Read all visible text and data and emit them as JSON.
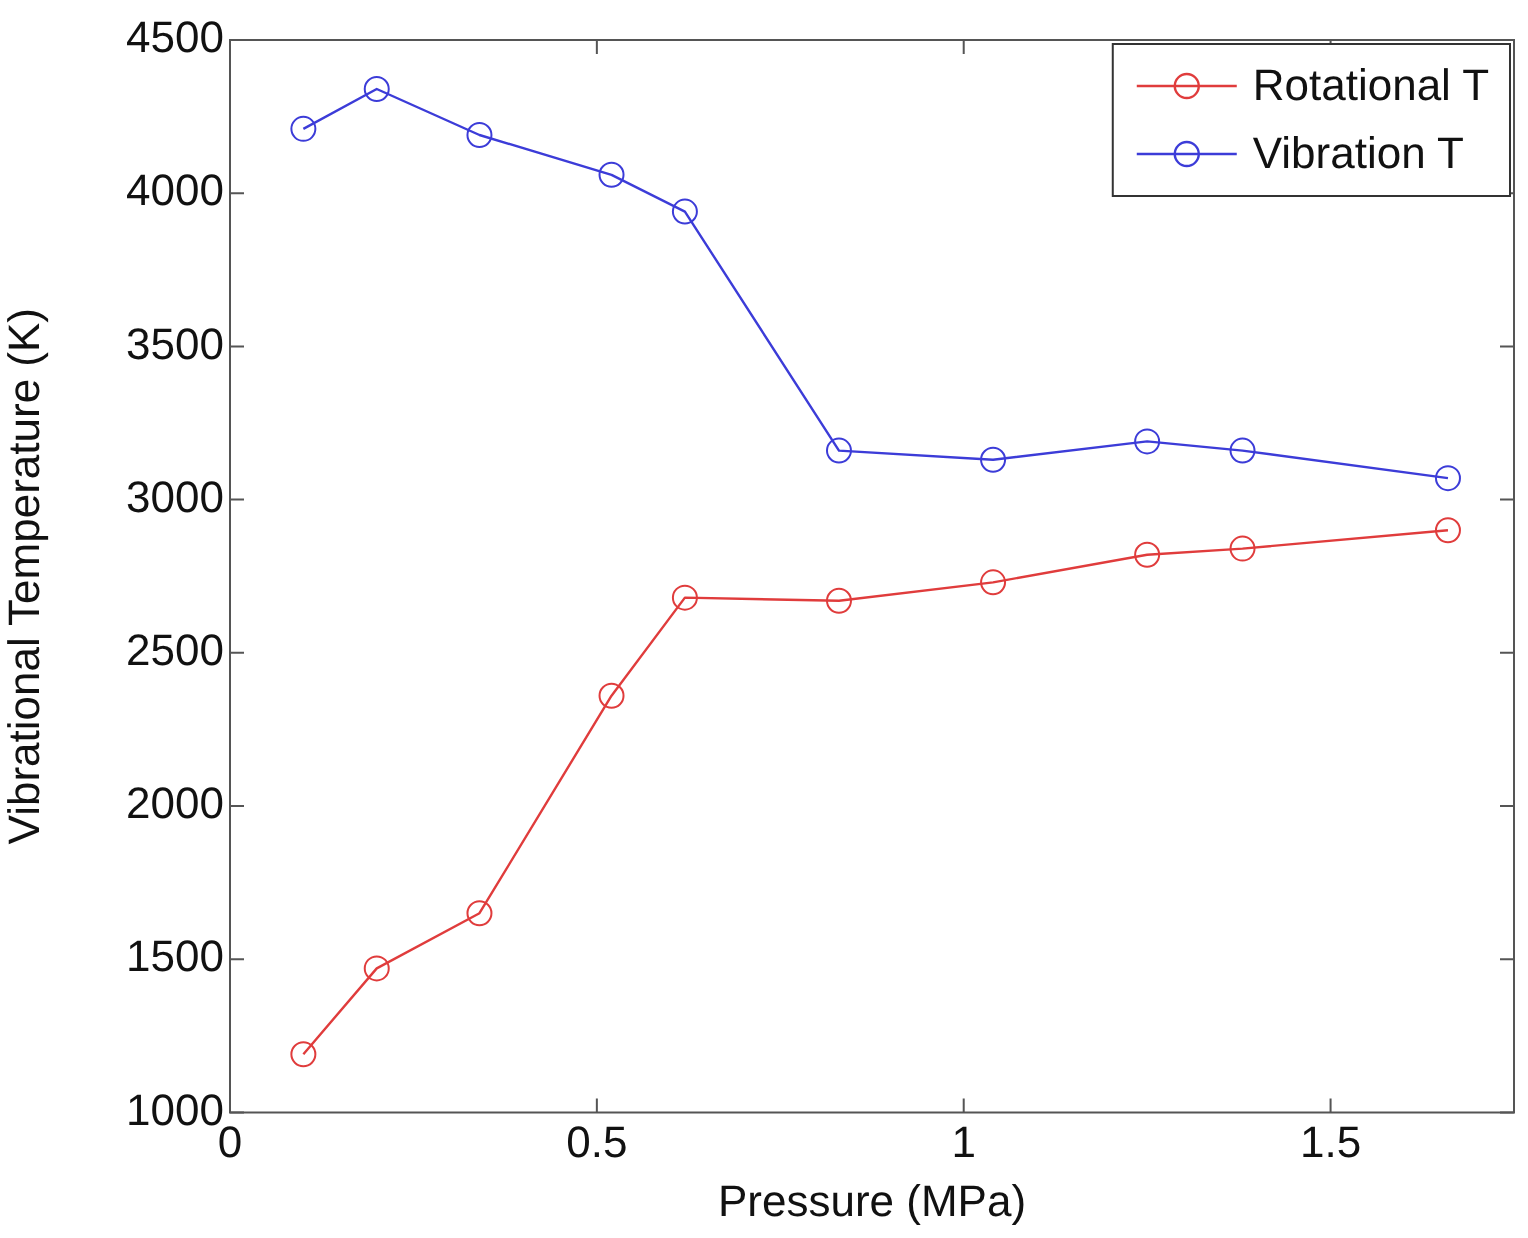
{
  "chart_data": {
    "type": "line",
    "xlabel": "Pressure (MPa)",
    "ylabel": "Vibrational Temperature (K)",
    "x": [
      0.1,
      0.2,
      0.34,
      0.52,
      0.62,
      0.83,
      1.04,
      1.25,
      1.38,
      1.66
    ],
    "series": [
      {
        "name": "Rotational T",
        "color": "#e03c3c",
        "values": [
          1190,
          1470,
          1650,
          2360,
          2680,
          2670,
          2730,
          2820,
          2840,
          2900
        ]
      },
      {
        "name": "Vibration T",
        "color": "#3c3cd8",
        "values": [
          4210,
          4340,
          4190,
          4060,
          3940,
          3160,
          3130,
          3190,
          3160,
          3070
        ]
      }
    ],
    "xlim": [
      0,
      1.75
    ],
    "xticks": [
      0,
      0.5,
      1,
      1.5
    ],
    "ylim": [
      1000,
      4500
    ],
    "yticks": [
      1000,
      1500,
      2000,
      2500,
      3000,
      3500,
      4000,
      4500
    ],
    "grid": false,
    "legend": "top right",
    "marker": "circle",
    "line_style": "solid"
  }
}
